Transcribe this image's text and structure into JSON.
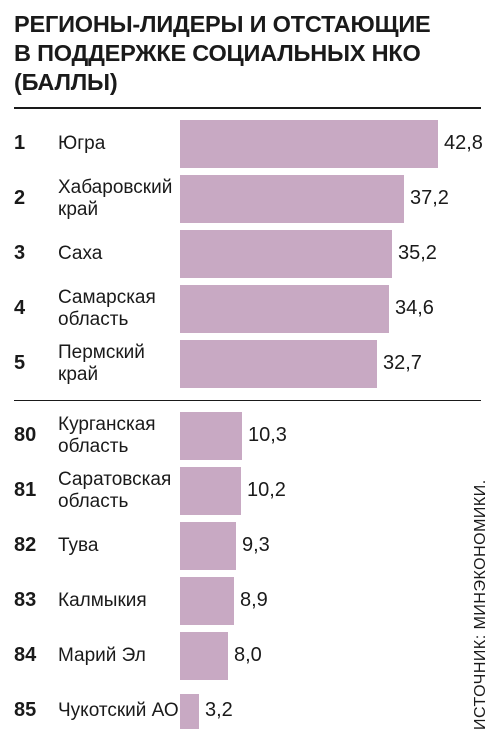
{
  "chart_data": {
    "type": "bar",
    "orientation": "horizontal",
    "title_lines": [
      "РЕГИОНЫ-ЛИДЕРЫ И ОТСТАЮЩИЕ",
      "В ПОДДЕРЖКЕ СОЦИАЛЬНЫХ НКО",
      "(БАЛЛЫ)"
    ],
    "source": "ИСТОЧНИК: МИНЭКОНОМИКИ.",
    "groups": [
      {
        "name": "leaders",
        "items": [
          {
            "rank": "1",
            "name_lines": [
              "Югра"
            ],
            "value": 42.8,
            "label": "42,8"
          },
          {
            "rank": "2",
            "name_lines": [
              "Хабаровский",
              "край"
            ],
            "value": 37.2,
            "label": "37,2"
          },
          {
            "rank": "3",
            "name_lines": [
              "Саха"
            ],
            "value": 35.2,
            "label": "35,2"
          },
          {
            "rank": "4",
            "name_lines": [
              "Самарская",
              "область"
            ],
            "value": 34.6,
            "label": "34,6"
          },
          {
            "rank": "5",
            "name_lines": [
              "Пермский",
              "край"
            ],
            "value": 32.7,
            "label": "32,7"
          }
        ]
      },
      {
        "name": "laggards",
        "items": [
          {
            "rank": "80",
            "name_lines": [
              "Курганская",
              "область"
            ],
            "value": 10.3,
            "label": "10,3"
          },
          {
            "rank": "81",
            "name_lines": [
              "Саратовская",
              "область"
            ],
            "value": 10.2,
            "label": "10,2"
          },
          {
            "rank": "82",
            "name_lines": [
              "Тува"
            ],
            "value": 9.3,
            "label": "9,3"
          },
          {
            "rank": "83",
            "name_lines": [
              "Калмыкия"
            ],
            "value": 8.9,
            "label": "8,9"
          },
          {
            "rank": "84",
            "name_lines": [
              "Марий Эл"
            ],
            "value": 8.0,
            "label": "8,0"
          },
          {
            "rank": "85",
            "name_lines": [
              "Чукотский АО"
            ],
            "value": 3.2,
            "label": "3,2"
          }
        ]
      }
    ],
    "bar_color": "#c8a9c3",
    "xlim": [
      0,
      42.8
    ],
    "grid": false,
    "legend": "none"
  }
}
